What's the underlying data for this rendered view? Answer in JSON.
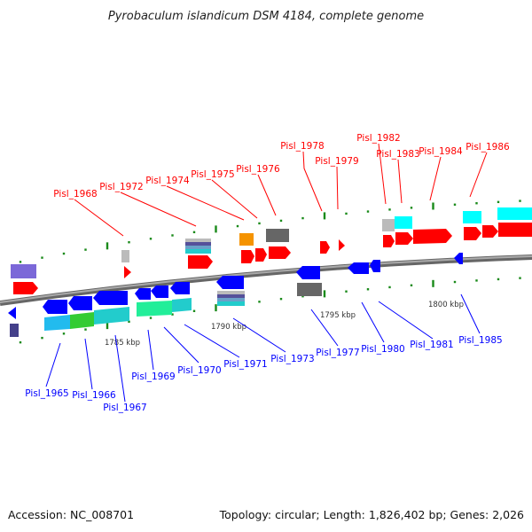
{
  "title": "Pyrobaculum islandicum DSM 4184, complete genome",
  "footer": {
    "accession": "Accession: NC_008701",
    "summary": "Topology: circular; Length: 1,826,402 bp; Genes: 2,026"
  },
  "scale_labels": [
    "1785 kbp",
    "1790 kbp",
    "1795 kbp",
    "1800 kbp"
  ],
  "forward_genes": [
    "Pisl_1968",
    "Pisl_1972",
    "Pisl_1974",
    "Pisl_1975",
    "Pisl_1976",
    "Pisl_1978",
    "Pisl_1979",
    "Pisl_1982",
    "Pisl_1983",
    "Pisl_1984",
    "Pisl_1986"
  ],
  "reverse_genes": [
    "Pisl_1965",
    "Pisl_1966",
    "Pisl_1967",
    "Pisl_1969",
    "Pisl_1970",
    "Pisl_1971",
    "Pisl_1973",
    "Pisl_1977",
    "Pisl_1980",
    "Pisl_1981",
    "Pisl_1985"
  ],
  "colors": {
    "forward": "#ff0000",
    "reverse": "#0000ff",
    "tick": "#1a8a1a",
    "backbone": "#888888"
  }
}
